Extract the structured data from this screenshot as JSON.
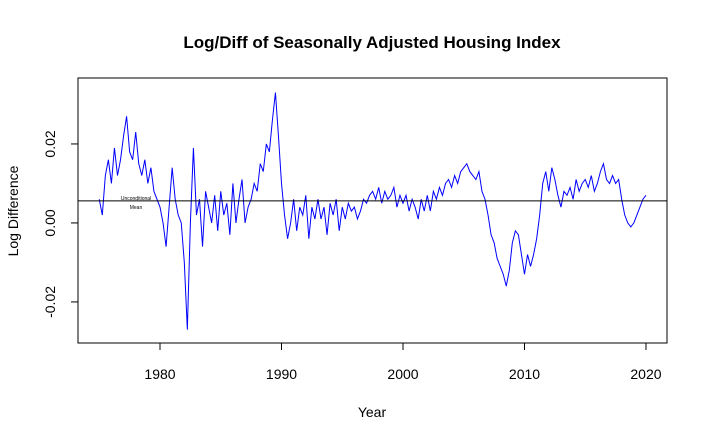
{
  "chart_data": {
    "type": "line",
    "title": "Log/Diff of Seasonally Adjusted Housing Index",
    "x_label": "Year",
    "y_label": "Log Difference",
    "color": "#0000ff",
    "x": [
      1975,
      1975.25,
      1975.5,
      1975.75,
      1976,
      1976.25,
      1976.5,
      1976.75,
      1977,
      1977.25,
      1977.5,
      1977.75,
      1978,
      1978.25,
      1978.5,
      1978.75,
      1979,
      1979.25,
      1979.5,
      1979.75,
      1980,
      1980.25,
      1980.5,
      1980.75,
      1981,
      1981.25,
      1981.5,
      1981.75,
      1982,
      1982.25,
      1982.5,
      1982.75,
      1983,
      1983.25,
      1983.5,
      1983.75,
      1984,
      1984.25,
      1984.5,
      1984.75,
      1985,
      1985.25,
      1985.5,
      1985.75,
      1986,
      1986.25,
      1986.5,
      1986.75,
      1987,
      1987.25,
      1987.5,
      1987.75,
      1988,
      1988.25,
      1988.5,
      1988.75,
      1989,
      1989.25,
      1989.5,
      1989.75,
      1990,
      1990.25,
      1990.5,
      1990.75,
      1991,
      1991.25,
      1991.5,
      1991.75,
      1992,
      1992.25,
      1992.5,
      1992.75,
      1993,
      1993.25,
      1993.5,
      1993.75,
      1994,
      1994.25,
      1994.5,
      1994.75,
      1995,
      1995.25,
      1995.5,
      1995.75,
      1996,
      1996.25,
      1996.5,
      1996.75,
      1997,
      1997.25,
      1997.5,
      1997.75,
      1998,
      1998.25,
      1998.5,
      1998.75,
      1999,
      1999.25,
      1999.5,
      1999.75,
      2000,
      2000.25,
      2000.5,
      2000.75,
      2001,
      2001.25,
      2001.5,
      2001.75,
      2002,
      2002.25,
      2002.5,
      2002.75,
      2003,
      2003.25,
      2003.5,
      2003.75,
      2004,
      2004.25,
      2004.5,
      2004.75,
      2005,
      2005.25,
      2005.5,
      2005.75,
      2006,
      2006.25,
      2006.5,
      2006.75,
      2007,
      2007.25,
      2007.5,
      2007.75,
      2008,
      2008.25,
      2008.5,
      2008.75,
      2009,
      2009.25,
      2009.5,
      2009.75,
      2010,
      2010.25,
      2010.5,
      2010.75,
      2011,
      2011.25,
      2011.5,
      2011.75,
      2012,
      2012.25,
      2012.5,
      2012.75,
      2013,
      2013.25,
      2013.5,
      2013.75,
      2014,
      2014.25,
      2014.5,
      2014.75,
      2015,
      2015.25,
      2015.5,
      2015.75,
      2016,
      2016.25,
      2016.5,
      2016.75,
      2017,
      2017.25,
      2017.5,
      2017.75,
      2018,
      2018.25,
      2018.5,
      2018.75,
      2019,
      2019.25,
      2019.5,
      2019.75,
      2020
    ],
    "values": [
      0.006,
      0.002,
      0.012,
      0.016,
      0.01,
      0.019,
      0.012,
      0.016,
      0.022,
      0.027,
      0.018,
      0.016,
      0.023,
      0.015,
      0.012,
      0.016,
      0.01,
      0.014,
      0.008,
      0.006,
      0.004,
      0.0,
      -0.006,
      0.004,
      0.014,
      0.006,
      0.002,
      0.0,
      -0.01,
      -0.027,
      0.0,
      0.019,
      0.002,
      0.006,
      -0.006,
      0.008,
      0.004,
      0.0,
      0.007,
      -0.002,
      0.008,
      0.002,
      0.005,
      -0.003,
      0.01,
      0.0,
      0.006,
      0.011,
      0.0,
      0.004,
      0.006,
      0.01,
      0.008,
      0.015,
      0.013,
      0.02,
      0.018,
      0.026,
      0.033,
      0.022,
      0.01,
      0.002,
      -0.004,
      0.0,
      0.006,
      -0.002,
      0.004,
      0.002,
      0.007,
      -0.004,
      0.004,
      0.001,
      0.006,
      0.001,
      0.004,
      -0.003,
      0.005,
      0.002,
      0.006,
      -0.002,
      0.004,
      0.001,
      0.005,
      0.003,
      0.004,
      0.001,
      0.003,
      0.006,
      0.005,
      0.007,
      0.008,
      0.006,
      0.009,
      0.005,
      0.008,
      0.006,
      0.007,
      0.009,
      0.004,
      0.007,
      0.005,
      0.007,
      0.003,
      0.006,
      0.004,
      0.001,
      0.006,
      0.003,
      0.007,
      0.003,
      0.008,
      0.006,
      0.009,
      0.007,
      0.01,
      0.011,
      0.009,
      0.012,
      0.01,
      0.013,
      0.014,
      0.015,
      0.013,
      0.012,
      0.011,
      0.013,
      0.008,
      0.006,
      0.002,
      -0.003,
      -0.005,
      -0.009,
      -0.011,
      -0.013,
      -0.016,
      -0.012,
      -0.005,
      -0.002,
      -0.003,
      -0.008,
      -0.013,
      -0.008,
      -0.011,
      -0.008,
      -0.004,
      0.002,
      0.01,
      0.013,
      0.008,
      0.014,
      0.011,
      0.007,
      0.004,
      0.008,
      0.007,
      0.009,
      0.006,
      0.011,
      0.008,
      0.01,
      0.011,
      0.009,
      0.012,
      0.008,
      0.01,
      0.013,
      0.015,
      0.011,
      0.01,
      0.012,
      0.01,
      0.011,
      0.006,
      0.002,
      0.0,
      -0.001,
      0.0,
      0.002,
      0.004,
      0.006,
      0.007
    ],
    "mean_line": 0.0056,
    "annotation": [
      "Unconditional",
      "Mean"
    ],
    "xlim": [
      1973.25,
      2021.73
    ],
    "ylim": [
      -0.0304,
      0.0367
    ],
    "xticks": [
      1980,
      1990,
      2000,
      2010,
      2020
    ],
    "yticks": [
      -0.02,
      {
        "value": 0,
        "label": "0.00"
      },
      0.02
    ]
  }
}
